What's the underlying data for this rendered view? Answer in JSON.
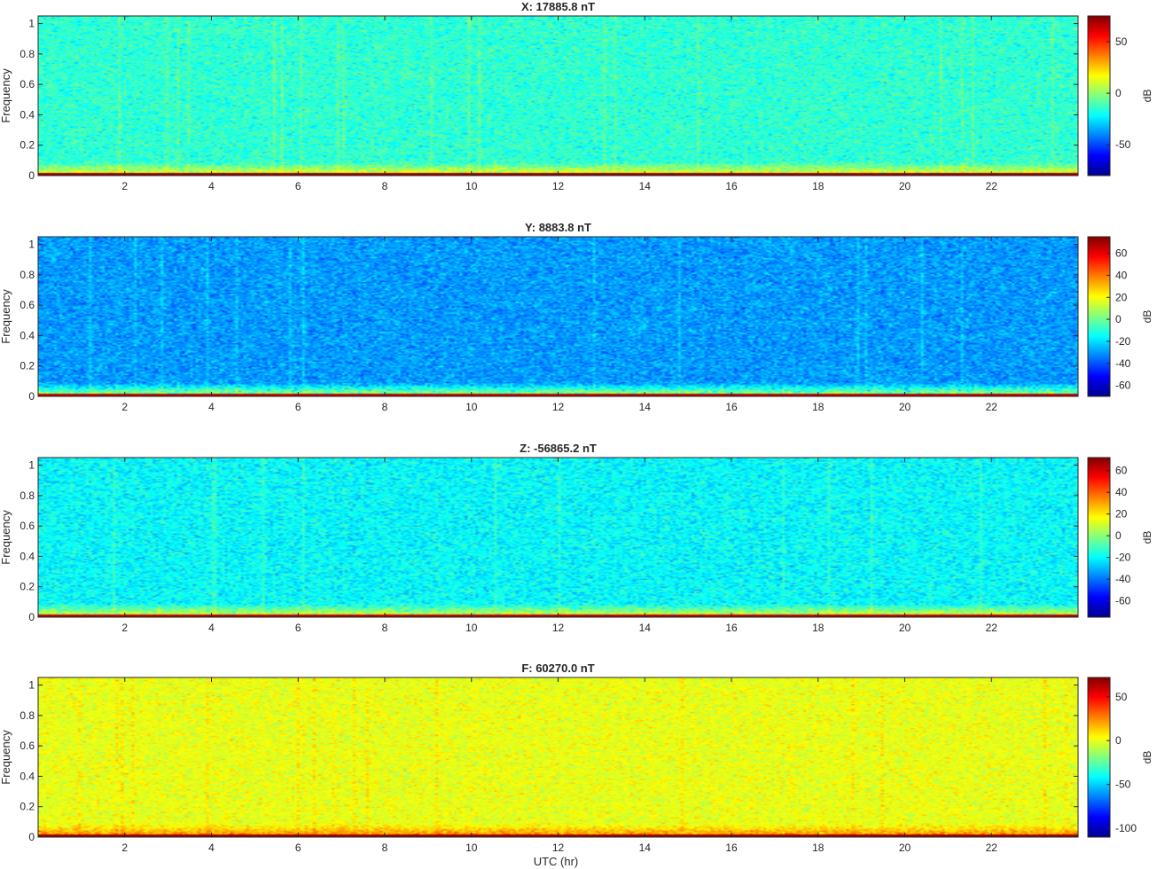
{
  "figure": {
    "xlabel": "UTC (hr)",
    "colormap": "jet",
    "colormap_stops": [
      "#00008f",
      "#0000ff",
      "#0080ff",
      "#00ffff",
      "#80ff80",
      "#ffff00",
      "#ff8000",
      "#ff0000",
      "#800000"
    ]
  },
  "chart_data": [
    {
      "type": "heatmap",
      "title": "X: 17885.8 nT",
      "ylabel": "Frequency",
      "xlabel": "",
      "xlim": [
        0,
        24
      ],
      "ylim": [
        0,
        1.05
      ],
      "xticks": [
        2,
        4,
        6,
        8,
        10,
        12,
        14,
        16,
        18,
        20,
        22
      ],
      "yticks": [
        0,
        0.2,
        0.4,
        0.6,
        0.8,
        1
      ],
      "colorbar": {
        "label": "dB",
        "clim": [
          -80,
          75
        ],
        "ticks": [
          -50,
          0,
          50
        ]
      },
      "background_level_db": -15,
      "low_freq_band_db": 20,
      "dc_line_db": 70
    },
    {
      "type": "heatmap",
      "title": "Y: 8883.8 nT",
      "ylabel": "Frequency",
      "xlabel": "",
      "xlim": [
        0,
        24
      ],
      "ylim": [
        0,
        1.05
      ],
      "xticks": [
        2,
        4,
        6,
        8,
        10,
        12,
        14,
        16,
        18,
        20,
        22
      ],
      "yticks": [
        0,
        0.2,
        0.4,
        0.6,
        0.8,
        1
      ],
      "colorbar": {
        "label": "dB",
        "clim": [
          -70,
          75
        ],
        "ticks": [
          -60,
          -40,
          -20,
          0,
          20,
          40,
          60
        ]
      },
      "background_level_db": -30,
      "low_freq_band_db": 15,
      "dc_line_db": 65
    },
    {
      "type": "heatmap",
      "title": "Z: -56865.2 nT",
      "ylabel": "Frequency",
      "xlabel": "",
      "xlim": [
        0,
        24
      ],
      "ylim": [
        0,
        1.05
      ],
      "xticks": [
        2,
        4,
        6,
        8,
        10,
        12,
        14,
        16,
        18,
        20,
        22
      ],
      "yticks": [
        0,
        0.2,
        0.4,
        0.6,
        0.8,
        1
      ],
      "colorbar": {
        "label": "dB",
        "clim": [
          -75,
          72
        ],
        "ticks": [
          -60,
          -40,
          -20,
          0,
          20,
          40,
          60
        ]
      },
      "background_level_db": -20,
      "low_freq_band_db": 18,
      "dc_line_db": 62
    },
    {
      "type": "heatmap",
      "title": "F: 60270.0 nT",
      "ylabel": "Frequency",
      "xlabel": "UTC (hr)",
      "xlim": [
        0,
        24
      ],
      "ylim": [
        0,
        1.05
      ],
      "xticks": [
        2,
        4,
        6,
        8,
        10,
        12,
        14,
        16,
        18,
        20,
        22
      ],
      "yticks": [
        0,
        0.2,
        0.4,
        0.6,
        0.8,
        1
      ],
      "colorbar": {
        "label": "dB",
        "clim": [
          -110,
          72
        ],
        "ticks": [
          -100,
          -50,
          0,
          50
        ]
      },
      "background_level_db": 0,
      "low_freq_band_db": 30,
      "dc_line_db": 65
    }
  ]
}
